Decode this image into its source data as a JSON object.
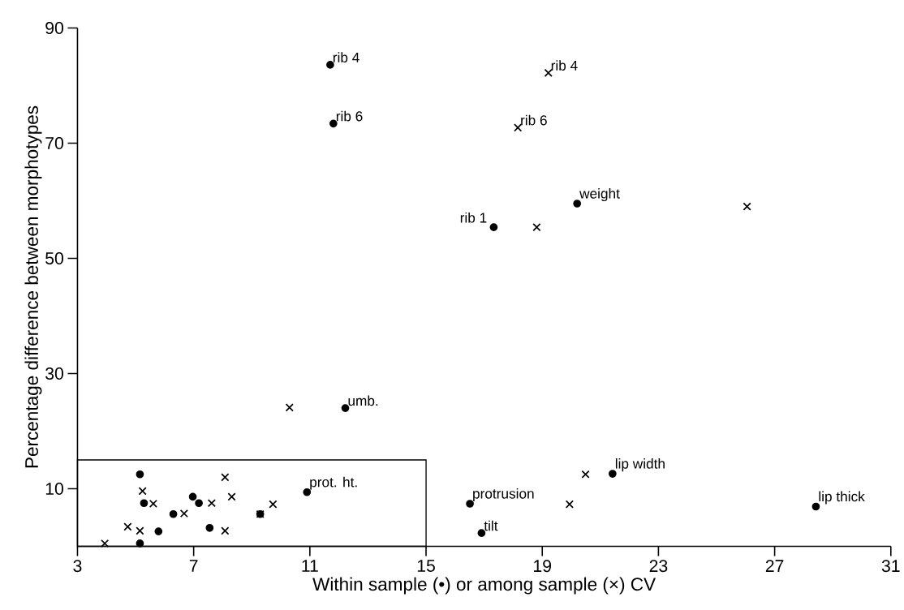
{
  "chart_data": {
    "type": "scatter",
    "xlabel": "Within sample (•) or among sample (×) CV",
    "ylabel": "Percentage difference between morphotypes",
    "xlim": [
      3,
      31
    ],
    "ylim": [
      0,
      90
    ],
    "xticks": [
      3,
      7,
      11,
      15,
      19,
      23,
      27,
      31
    ],
    "yticks": [
      10,
      30,
      50,
      70,
      90
    ],
    "series": [
      {
        "color": "#000000",
        "marker": "circle",
        "x": [
          11.7,
          11.81,
          17.33,
          20.2,
          12.22,
          5.15,
          5.29,
          5.15,
          5.79,
          6.3,
          6.97,
          7.18,
          7.55,
          9.29,
          10.9,
          16.51,
          16.91,
          21.42,
          28.42
        ],
        "values": [
          83.6,
          73.4,
          55.4,
          59.5,
          24.0,
          12.5,
          7.5,
          0.5,
          2.6,
          5.6,
          8.6,
          7.5,
          3.2,
          5.6,
          9.4,
          7.4,
          2.3,
          12.6,
          6.9
        ]
      },
      {
        "color": "#000000",
        "marker": "cross",
        "x": [
          19.21,
          18.16,
          18.81,
          26.05,
          10.3,
          5.24,
          5.61,
          3.94,
          4.73,
          5.15,
          6.67,
          7.62,
          8.08,
          8.31,
          8.08,
          9.29,
          9.73,
          19.94,
          20.49
        ],
        "values": [
          82.2,
          72.7,
          55.4,
          59.0,
          24.1,
          9.6,
          7.4,
          0.5,
          3.4,
          2.7,
          5.7,
          7.5,
          12.0,
          8.6,
          2.7,
          5.6,
          7.3,
          7.3,
          12.5
        ]
      }
    ],
    "annotations": [
      {
        "text": "rib 4",
        "x": 11.7,
        "y": 83.6
      },
      {
        "text": "rib 6",
        "x": 11.81,
        "y": 73.4
      },
      {
        "text": "rib 4",
        "x": 19.21,
        "y": 82.2
      },
      {
        "text": "rib 6",
        "x": 18.16,
        "y": 72.7
      },
      {
        "text": "rib 1",
        "x": 17.33,
        "y": 55.4
      },
      {
        "text": "weight",
        "x": 20.2,
        "y": 59.5
      },
      {
        "text": "umb.",
        "x": 12.22,
        "y": 24.0
      },
      {
        "text": "prot. ht.",
        "x": 10.9,
        "y": 9.4
      },
      {
        "text": "protrusion",
        "x": 16.51,
        "y": 7.4
      },
      {
        "text": "tilt",
        "x": 16.91,
        "y": 2.3
      },
      {
        "text": "lip width",
        "x": 21.42,
        "y": 12.6
      },
      {
        "text": "lip thick",
        "x": 28.42,
        "y": 6.9
      }
    ]
  }
}
